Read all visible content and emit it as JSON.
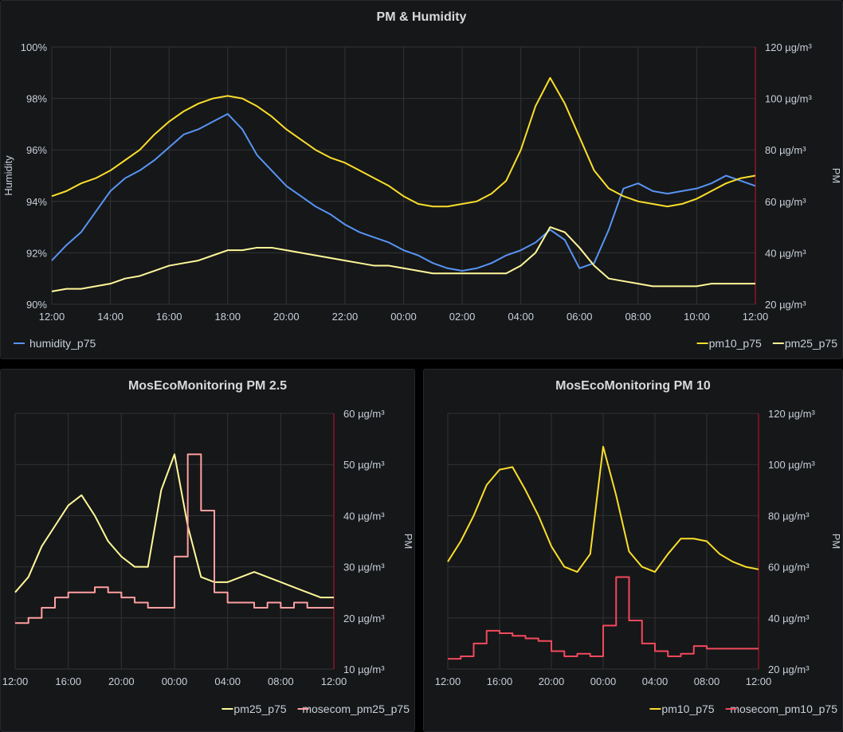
{
  "panels": {
    "top": {
      "title": "PM & Humidity"
    },
    "left": {
      "title": "MosEcoMonitoring PM 2.5"
    },
    "right": {
      "title": "MosEcoMonitoring PM 10"
    }
  },
  "colors": {
    "humidity": "#5794f2",
    "pm10": "#fade2a",
    "pm25": "#fff899",
    "mosecom_pm25": "#ff9f9f",
    "mosecom_pm10": "#f2495c",
    "axis_line": "#c4162a",
    "grid": "#333"
  },
  "chart_data": [
    {
      "type": "line",
      "title": "PM & Humidity",
      "x_ticks": [
        "12:00",
        "14:00",
        "16:00",
        "18:00",
        "20:00",
        "22:00",
        "00:00",
        "02:00",
        "04:00",
        "06:00",
        "08:00",
        "10:00",
        "12:00"
      ],
      "x_range": [
        0,
        24
      ],
      "y_left": {
        "label": "Humidity",
        "ticks": [
          "90%",
          "92%",
          "94%",
          "96%",
          "98%",
          "100%"
        ],
        "range": [
          90,
          100
        ]
      },
      "y_right": {
        "label": "PM",
        "ticks": [
          "20 µg/m³",
          "40 µg/m³",
          "60 µg/m³",
          "80 µg/m³",
          "100 µg/m³",
          "120 µg/m³"
        ],
        "range": [
          20,
          120
        ]
      },
      "legend_left": [
        "humidity_p75"
      ],
      "legend_right": [
        "pm10_p75",
        "pm25_p75"
      ],
      "series": [
        {
          "name": "humidity_p75",
          "axis": "left",
          "color_key": "humidity",
          "x": [
            0,
            0.5,
            1,
            1.5,
            2,
            2.5,
            3,
            3.5,
            4,
            4.5,
            5,
            5.5,
            6,
            6.5,
            7,
            7.5,
            8,
            8.5,
            9,
            9.5,
            10,
            10.5,
            11,
            11.5,
            12,
            12.5,
            13,
            13.5,
            14,
            14.5,
            15,
            15.5,
            16,
            16.5,
            17,
            17.5,
            18,
            18.5,
            19,
            19.5,
            20,
            20.5,
            21,
            21.5,
            22,
            22.5,
            23,
            23.5,
            24
          ],
          "y": [
            91.7,
            92.3,
            92.8,
            93.6,
            94.4,
            94.9,
            95.2,
            95.6,
            96.1,
            96.6,
            96.8,
            97.1,
            97.4,
            96.8,
            95.8,
            95.2,
            94.6,
            94.2,
            93.8,
            93.5,
            93.1,
            92.8,
            92.6,
            92.4,
            92.1,
            91.9,
            91.6,
            91.4,
            91.3,
            91.4,
            91.6,
            91.9,
            92.1,
            92.4,
            92.9,
            92.5,
            91.4,
            91.6,
            92.9,
            94.5,
            94.7,
            94.4,
            94.3,
            94.4,
            94.5,
            94.7,
            95.0,
            94.8,
            94.6
          ]
        },
        {
          "name": "pm10_p75",
          "axis": "right",
          "color_key": "pm10",
          "x": [
            0,
            0.5,
            1,
            1.5,
            2,
            2.5,
            3,
            3.5,
            4,
            4.5,
            5,
            5.5,
            6,
            6.5,
            7,
            7.5,
            8,
            8.5,
            9,
            9.5,
            10,
            10.5,
            11,
            11.5,
            12,
            12.5,
            13,
            13.5,
            14,
            14.5,
            15,
            15.5,
            16,
            16.5,
            17,
            17.5,
            18,
            18.5,
            19,
            19.5,
            20,
            20.5,
            21,
            21.5,
            22,
            22.5,
            23,
            23.5,
            24
          ],
          "y": [
            62,
            64,
            67,
            69,
            72,
            76,
            80,
            86,
            91,
            95,
            98,
            100,
            101,
            100,
            97,
            93,
            88,
            84,
            80,
            77,
            75,
            72,
            69,
            66,
            62,
            59,
            58,
            58,
            59,
            60,
            63,
            68,
            80,
            97,
            108,
            98,
            85,
            72,
            65,
            62,
            60,
            59,
            58,
            59,
            61,
            64,
            67,
            69,
            70
          ]
        },
        {
          "name": "pm25_p75",
          "axis": "right",
          "color_key": "pm25",
          "x": [
            0,
            0.5,
            1,
            1.5,
            2,
            2.5,
            3,
            3.5,
            4,
            4.5,
            5,
            5.5,
            6,
            6.5,
            7,
            7.5,
            8,
            8.5,
            9,
            9.5,
            10,
            10.5,
            11,
            11.5,
            12,
            12.5,
            13,
            13.5,
            14,
            14.5,
            15,
            15.5,
            16,
            16.5,
            17,
            17.5,
            18,
            18.5,
            19,
            19.5,
            20,
            20.5,
            21,
            21.5,
            22,
            22.5,
            23,
            23.5,
            24
          ],
          "y": [
            25,
            26,
            26,
            27,
            28,
            30,
            31,
            33,
            35,
            36,
            37,
            39,
            41,
            41,
            42,
            42,
            41,
            40,
            39,
            38,
            37,
            36,
            35,
            35,
            34,
            33,
            32,
            32,
            32,
            32,
            32,
            32,
            35,
            40,
            50,
            48,
            42,
            35,
            30,
            29,
            28,
            27,
            27,
            27,
            27,
            28,
            28,
            28,
            28
          ]
        }
      ]
    },
    {
      "type": "line",
      "title": "MosEcoMonitoring PM 2.5",
      "x_ticks": [
        "12:00",
        "16:00",
        "20:00",
        "00:00",
        "04:00",
        "08:00",
        "12:00"
      ],
      "x_range": [
        0,
        24
      ],
      "y_right": {
        "label": "PM",
        "ticks": [
          "10 µg/m³",
          "20 µg/m³",
          "30 µg/m³",
          "40 µg/m³",
          "50 µg/m³",
          "60 µg/m³"
        ],
        "range": [
          10,
          60
        ]
      },
      "legend_right": [
        "pm25_p75",
        "mosecom_pm25_p75"
      ],
      "series": [
        {
          "name": "pm25_p75",
          "axis": "right",
          "color_key": "pm25",
          "x": [
            0,
            1,
            2,
            3,
            4,
            5,
            6,
            7,
            8,
            9,
            10,
            11,
            12,
            13,
            14,
            15,
            16,
            17,
            18,
            19,
            20,
            21,
            22,
            23,
            24
          ],
          "y": [
            25,
            28,
            34,
            38,
            42,
            44,
            40,
            35,
            32,
            30,
            30,
            45,
            52,
            38,
            28,
            27,
            27,
            28,
            29,
            28,
            27,
            26,
            25,
            24,
            24
          ]
        },
        {
          "name": "mosecom_pm25_p75",
          "axis": "right",
          "color_key": "mosecom_pm25",
          "step": true,
          "x": [
            0,
            1,
            2,
            3,
            4,
            5,
            6,
            7,
            8,
            9,
            10,
            11,
            12,
            13,
            14,
            15,
            16,
            17,
            18,
            19,
            20,
            21,
            22,
            23,
            24
          ],
          "y": [
            19,
            20,
            22,
            24,
            25,
            25,
            26,
            25,
            24,
            23,
            22,
            22,
            32,
            52,
            41,
            25,
            23,
            23,
            22,
            23,
            22,
            23,
            22,
            22,
            22
          ]
        }
      ]
    },
    {
      "type": "line",
      "title": "MosEcoMonitoring PM 10",
      "x_ticks": [
        "12:00",
        "16:00",
        "20:00",
        "00:00",
        "04:00",
        "08:00",
        "12:00"
      ],
      "x_range": [
        0,
        24
      ],
      "y_right": {
        "label": "PM",
        "ticks": [
          "20 µg/m³",
          "40 µg/m³",
          "60 µg/m³",
          "80 µg/m³",
          "100 µg/m³",
          "120 µg/m³"
        ],
        "range": [
          20,
          120
        ]
      },
      "legend_right": [
        "pm10_p75",
        "mosecom_pm10_p75"
      ],
      "series": [
        {
          "name": "pm10_p75",
          "axis": "right",
          "color_key": "pm10",
          "x": [
            0,
            1,
            2,
            3,
            4,
            5,
            6,
            7,
            8,
            9,
            10,
            11,
            12,
            13,
            14,
            15,
            16,
            17,
            18,
            19,
            20,
            21,
            22,
            23,
            24
          ],
          "y": [
            62,
            70,
            80,
            92,
            98,
            99,
            90,
            80,
            68,
            60,
            58,
            65,
            107,
            88,
            66,
            60,
            58,
            65,
            71,
            71,
            70,
            65,
            62,
            60,
            59
          ]
        },
        {
          "name": "mosecom_pm10_p75",
          "axis": "right",
          "color_key": "mosecom_pm10",
          "step": true,
          "x": [
            0,
            1,
            2,
            3,
            4,
            5,
            6,
            7,
            8,
            9,
            10,
            11,
            12,
            13,
            14,
            15,
            16,
            17,
            18,
            19,
            20,
            21,
            22,
            23,
            24
          ],
          "y": [
            24,
            25,
            30,
            35,
            34,
            33,
            32,
            31,
            27,
            25,
            26,
            25,
            37,
            56,
            39,
            30,
            27,
            25,
            26,
            29,
            28,
            28,
            28,
            28,
            28
          ]
        }
      ]
    }
  ]
}
